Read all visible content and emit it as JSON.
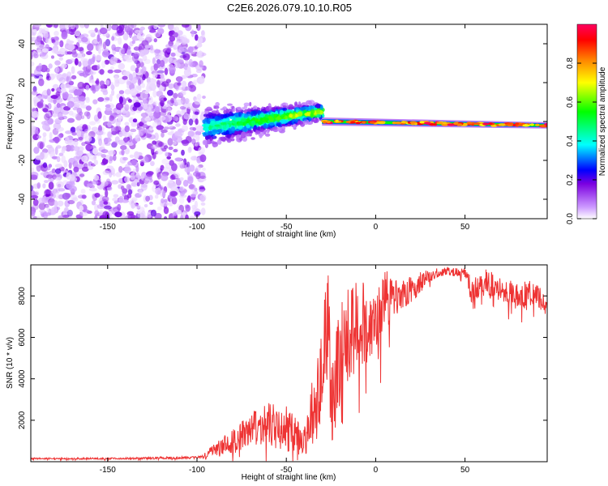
{
  "title": "C2E6.2026.079.10.10.R05",
  "colors": {
    "snr_line": "#ee3333",
    "axis": "#000000",
    "background": "#ffffff"
  },
  "chart_data": [
    {
      "type": "heatmap",
      "name": "spectrogram",
      "xlabel": "Height of straight line (km)",
      "ylabel": "Frequency (Hz)",
      "xlim": [
        -193,
        96
      ],
      "ylim": [
        -50,
        50
      ],
      "xticks": [
        -150,
        -100,
        -50,
        0,
        50
      ],
      "yticks": [
        -40,
        -20,
        0,
        20,
        40
      ],
      "xtick_labels": [
        "-150",
        "-100",
        "-50",
        "0",
        "50"
      ],
      "ytick_labels": [
        "-40",
        "-20",
        "0",
        "20",
        "40"
      ],
      "regions": [
        {
          "x_range": [
            -193,
            -96
          ],
          "description": "broadband noise",
          "amplitude_range": [
            0.02,
            0.2
          ]
        },
        {
          "x_range": [
            -96,
            -30
          ],
          "description": "rising signal band",
          "center_freq": [
            -3,
            5
          ],
          "amplitude_range": [
            0.1,
            0.5
          ]
        },
        {
          "x_range": [
            -30,
            96
          ],
          "description": "narrow carrier",
          "center_freq": [
            0,
            -2
          ],
          "amplitude_range": [
            0.7,
            1.0
          ]
        }
      ],
      "colorbar": {
        "label": "Normalized spectral amplitude",
        "range": [
          0.0,
          1.0
        ],
        "ticks": [
          0.0,
          0.2,
          0.4,
          0.6,
          0.8
        ],
        "tick_labels": [
          "0.0",
          "0.2",
          "0.4",
          "0.6",
          "0.8"
        ],
        "colormap": [
          "#ffffff",
          "#cc99ff",
          "#7b00e0",
          "#0000ff",
          "#00ffff",
          "#00ff00",
          "#ffff00",
          "#ff8000",
          "#ff0000",
          "#ff0060"
        ]
      }
    },
    {
      "type": "line",
      "name": "snr",
      "xlabel": "Height of straight line (km)",
      "ylabel": "SNR (10 * v/v)",
      "xlim": [
        -193,
        96
      ],
      "ylim": [
        0,
        9500
      ],
      "xticks": [
        -150,
        -100,
        -50,
        0,
        50
      ],
      "yticks": [
        2000,
        4000,
        6000,
        8000
      ],
      "xtick_labels": [
        "-150",
        "-100",
        "-50",
        "0",
        "50"
      ],
      "ytick_labels": [
        "2000",
        "4000",
        "6000",
        "8000"
      ],
      "series": [
        {
          "name": "SNR",
          "x": [
            -193,
            -150,
            -100,
            -95,
            -90,
            -80,
            -70,
            -60,
            -50,
            -40,
            -35,
            -30,
            -27,
            -25,
            -20,
            -15,
            -10,
            -5,
            0,
            5,
            10,
            20,
            30,
            40,
            50,
            55,
            60,
            70,
            80,
            90,
            96
          ],
          "values": [
            150,
            150,
            200,
            300,
            600,
            1000,
            1500,
            1800,
            1600,
            900,
            2500,
            4000,
            7000,
            3000,
            5000,
            6000,
            6800,
            6500,
            7000,
            7800,
            7800,
            8300,
            9000,
            9200,
            9100,
            8000,
            8700,
            8300,
            8000,
            8200,
            7200
          ],
          "noise_amp": [
            40,
            40,
            60,
            150,
            300,
            600,
            900,
            1100,
            1100,
            700,
            1800,
            2500,
            3500,
            2500,
            2500,
            2400,
            2200,
            2000,
            1800,
            1600,
            1000,
            700,
            300,
            200,
            200,
            800,
            700,
            600,
            700,
            600,
            500
          ]
        }
      ]
    }
  ]
}
